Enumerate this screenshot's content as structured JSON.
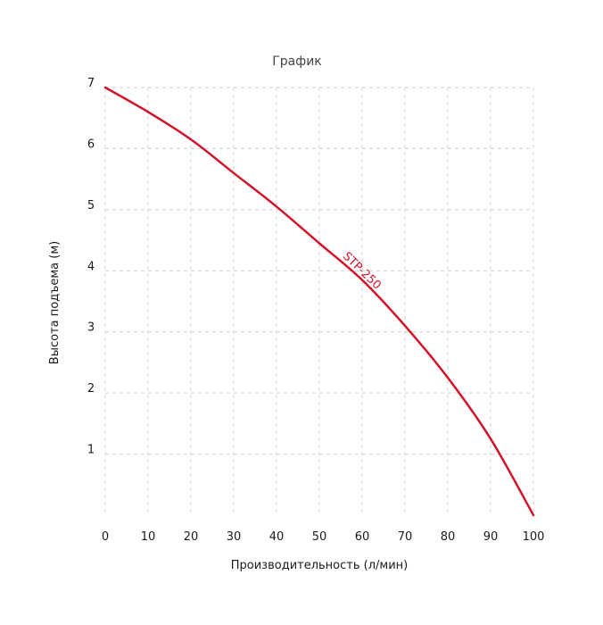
{
  "chart_data": {
    "type": "line",
    "title": "График",
    "xlabel": "Производительность (л/мин)",
    "ylabel": "Высота подъема (м)",
    "xlim": [
      0,
      100
    ],
    "ylim": [
      0,
      7
    ],
    "x_ticks": [
      "0",
      "10",
      "20",
      "30",
      "40",
      "50",
      "60",
      "70",
      "80",
      "90",
      "100"
    ],
    "y_ticks": [
      "1",
      "2",
      "3",
      "4",
      "5",
      "6",
      "7"
    ],
    "grid": true,
    "series": [
      {
        "name": "STP-250",
        "color": "#d0152b",
        "x": [
          0,
          10,
          20,
          30,
          40,
          50,
          60,
          70,
          80,
          90,
          100
        ],
        "y": [
          7.0,
          6.6,
          6.15,
          5.6,
          5.05,
          4.45,
          3.85,
          3.1,
          2.25,
          1.25,
          0.0
        ]
      }
    ]
  }
}
